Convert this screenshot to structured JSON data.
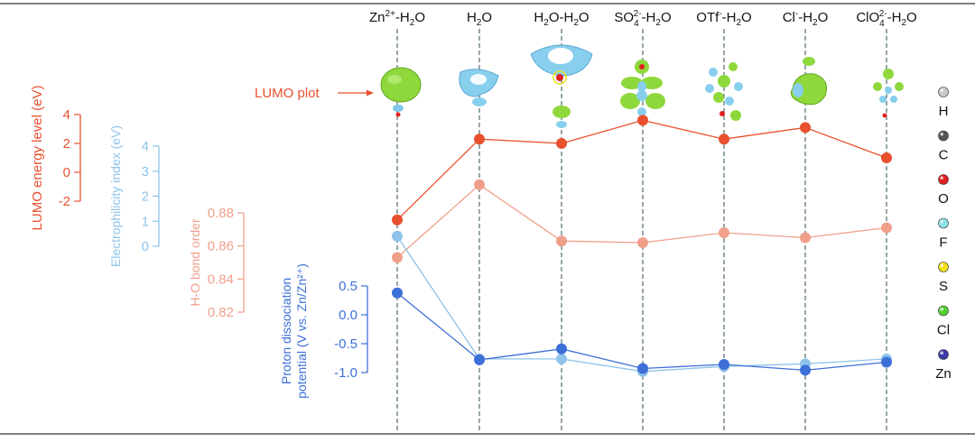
{
  "chart_data": {
    "type": "line",
    "categories": [
      "Zn2+-H2O",
      "H2O",
      "H2O-H2O",
      "SO42--H2O",
      "OTf--H2O",
      "Cl--H2O",
      "ClO42--H2O"
    ],
    "series": [
      {
        "name": "LUMO energy level (eV)",
        "color": "#e8502e",
        "axis": {
          "label": "LUMO energy level (eV)",
          "ticks": [
            "4",
            "2",
            "0",
            "-2"
          ],
          "min": -2,
          "max": 4
        },
        "values": [
          -3.3,
          2.3,
          2.0,
          3.6,
          2.3,
          3.1,
          1.0
        ]
      },
      {
        "name": "Electrophilicity index (eV)",
        "color": "#8fc3ea",
        "axis": {
          "label": "Electrophilicity index (eV)",
          "ticks": [
            "4",
            "3",
            "2",
            "1",
            "0"
          ],
          "min": 0,
          "max": 4
        },
        "values": [
          0.4,
          -4.5,
          -4.5,
          -5.0,
          -4.8,
          -4.7,
          -4.5
        ]
      },
      {
        "name": "H-O bond order",
        "color": "#f0a08a",
        "axis": {
          "label": "H-O bond order",
          "ticks": [
            "0.88",
            "0.86",
            "0.84",
            "0.82"
          ],
          "min": 0.82,
          "max": 0.88
        },
        "values": [
          0.853,
          0.897,
          0.863,
          0.862,
          0.868,
          0.865,
          0.871
        ]
      },
      {
        "name": "Proton dissociation potential (V vs. Zn/Zn2+)",
        "color": "#3d6fd8",
        "axis": {
          "label_line1": "Proton dissociation",
          "label_line2": "potential (V vs. Zn/Zn²⁺)",
          "ticks": [
            "0.5",
            "0.0",
            "-0.5",
            "-1.0"
          ],
          "min": -1.0,
          "max": 0.5
        },
        "values": [
          0.38,
          -0.78,
          -0.59,
          -0.93,
          -0.86,
          -0.96,
          -0.82
        ]
      }
    ],
    "lumo_plot_label": "LUMO plot",
    "legend": [
      {
        "label": "H",
        "color": "#c8c8c8"
      },
      {
        "label": "C",
        "color": "#555555"
      },
      {
        "label": "O",
        "color": "#e02020"
      },
      {
        "label": "F",
        "color": "#8ee0e8"
      },
      {
        "label": "S",
        "color": "#f0e020"
      },
      {
        "label": "Cl",
        "color": "#50d030"
      },
      {
        "label": "Zn",
        "color": "#3a3aa8"
      }
    ],
    "legend_position": "right",
    "grid": false
  }
}
